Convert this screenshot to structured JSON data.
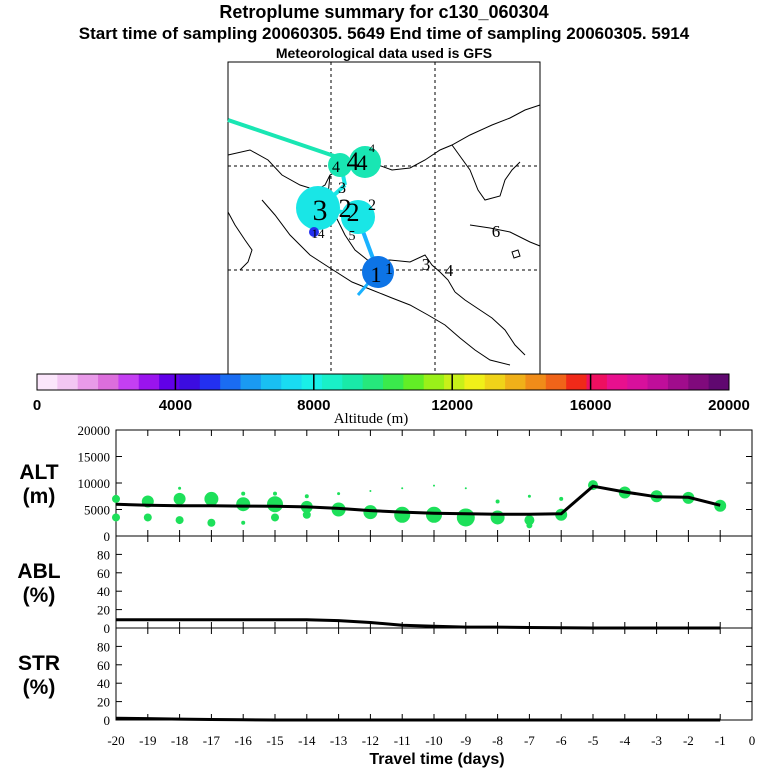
{
  "header": {
    "title": "Retroplume summary for c130_060304",
    "sampling": "Start time of sampling 20060305.  5649     End time of sampling 20060305.  5914",
    "met": "Meteorological data used is GFS"
  },
  "colors": {
    "trajectory_teal": "#19e6b3",
    "trajectory_cyan": "#19e6e6",
    "trajectory_sky": "#1ab2ff",
    "trajectory_blue": "#0d74e6",
    "green_dot": "#1de05a",
    "colorbar": [
      "#fbe6fb",
      "#f3c6f3",
      "#e99ae9",
      "#dc6edc",
      "#c43ff2",
      "#9a14ee",
      "#6100e8",
      "#3c0ce0",
      "#2330f0",
      "#1a6cf2",
      "#1a9af2",
      "#19bff2",
      "#19dbf2",
      "#19f0e8",
      "#19f0c8",
      "#19eaa8",
      "#26e87c",
      "#3aea4c",
      "#62ee26",
      "#9af019",
      "#c8f019",
      "#f0f019",
      "#f0d319",
      "#f0b019",
      "#f08c19",
      "#f06419",
      "#f02a19",
      "#ee0f60",
      "#e8108e",
      "#d8109c",
      "#c00e9a",
      "#a00c8c",
      "#800a7c",
      "#600870"
    ]
  },
  "map": {
    "labels": [
      {
        "text": "4",
        "value_m": 7500
      },
      {
        "text": "4",
        "value_m": 7500
      },
      {
        "text": "4",
        "value_m": 7500
      },
      {
        "text": "4",
        "value_m": 7500
      },
      {
        "text": "3",
        "value_m": 7000
      },
      {
        "text": "3",
        "value_m": 7000
      },
      {
        "text": "2",
        "value_m": 7000
      },
      {
        "text": "2",
        "value_m": 7000
      },
      {
        "text": "2",
        "value_m": 7000
      },
      {
        "text": "5",
        "value_m": 6500
      },
      {
        "text": "14",
        "value_m": 4500
      },
      {
        "text": "1",
        "value_m": 5000
      },
      {
        "text": "1",
        "value_m": 5000
      },
      {
        "text": "6",
        "value_m": 0
      },
      {
        "text": "3",
        "value_m": 0
      },
      {
        "text": "4",
        "value_m": 0
      }
    ]
  },
  "colorbar": {
    "ticks": [
      "0",
      "4000",
      "8000",
      "12000",
      "16000",
      "20000"
    ],
    "label": "Altitude (m)"
  },
  "chart_data": [
    {
      "type": "line",
      "panel": "ALT",
      "ylabel": "ALT\n(m)",
      "ylabel_lines": [
        "ALT",
        "(m)"
      ],
      "x": [
        -20,
        -19,
        -18,
        -17,
        -16,
        -15,
        -14,
        -13,
        -12,
        -11,
        -10,
        -9,
        -8,
        -7,
        -6,
        -5,
        -4,
        -3,
        -2,
        -1
      ],
      "values": [
        6000,
        5800,
        5700,
        5700,
        5650,
        5600,
        5500,
        5200,
        4800,
        4500,
        4300,
        4200,
        4100,
        4100,
        4200,
        9400,
        8300,
        7400,
        7300,
        5800
      ],
      "scatter": [
        {
          "x": -20,
          "y": 7000,
          "s": 4
        },
        {
          "x": -20,
          "y": 3500,
          "s": 4
        },
        {
          "x": -19,
          "y": 6500,
          "s": 6
        },
        {
          "x": -19,
          "y": 3500,
          "s": 4
        },
        {
          "x": -18,
          "y": 9000,
          "s": 1.5
        },
        {
          "x": -18,
          "y": 7000,
          "s": 6
        },
        {
          "x": -18,
          "y": 3000,
          "s": 4
        },
        {
          "x": -17,
          "y": 7000,
          "s": 7
        },
        {
          "x": -17,
          "y": 2500,
          "s": 4
        },
        {
          "x": -16,
          "y": 8000,
          "s": 2
        },
        {
          "x": -16,
          "y": 6000,
          "s": 7
        },
        {
          "x": -16,
          "y": 2500,
          "s": 2
        },
        {
          "x": -15,
          "y": 8000,
          "s": 2
        },
        {
          "x": -15,
          "y": 6000,
          "s": 8
        },
        {
          "x": -15,
          "y": 3500,
          "s": 4
        },
        {
          "x": -14,
          "y": 7500,
          "s": 2
        },
        {
          "x": -14,
          "y": 5500,
          "s": 6
        },
        {
          "x": -14,
          "y": 4000,
          "s": 4
        },
        {
          "x": -13,
          "y": 8000,
          "s": 1.5
        },
        {
          "x": -13,
          "y": 5000,
          "s": 7
        },
        {
          "x": -12,
          "y": 8500,
          "s": 1
        },
        {
          "x": -12,
          "y": 5000,
          "s": 2
        },
        {
          "x": -12,
          "y": 4500,
          "s": 7
        },
        {
          "x": -11,
          "y": 9000,
          "s": 1
        },
        {
          "x": -11,
          "y": 4000,
          "s": 8
        },
        {
          "x": -10,
          "y": 9500,
          "s": 1
        },
        {
          "x": -10,
          "y": 4000,
          "s": 8
        },
        {
          "x": -9,
          "y": 9000,
          "s": 1
        },
        {
          "x": -9,
          "y": 3500,
          "s": 9
        },
        {
          "x": -8,
          "y": 6500,
          "s": 2
        },
        {
          "x": -8,
          "y": 3500,
          "s": 7
        },
        {
          "x": -7,
          "y": 7500,
          "s": 1.5
        },
        {
          "x": -7,
          "y": 3000,
          "s": 5
        },
        {
          "x": -7,
          "y": 2000,
          "s": 3
        },
        {
          "x": -6,
          "y": 7000,
          "s": 2
        },
        {
          "x": -6,
          "y": 4000,
          "s": 6
        },
        {
          "x": -5,
          "y": 9600,
          "s": 5
        },
        {
          "x": -4,
          "y": 8200,
          "s": 6
        },
        {
          "x": -3,
          "y": 7500,
          "s": 6
        },
        {
          "x": -2,
          "y": 7200,
          "s": 6
        },
        {
          "x": -1,
          "y": 5700,
          "s": 6
        }
      ],
      "yticks": [
        "0",
        "5000",
        "10000",
        "15000",
        "20000"
      ],
      "ylim": [
        0,
        20000
      ]
    },
    {
      "type": "line",
      "panel": "ABL",
      "ylabel_lines": [
        "ABL",
        "(%)"
      ],
      "x": [
        -20,
        -19,
        -18,
        -17,
        -16,
        -15,
        -14,
        -13,
        -12,
        -11,
        -10,
        -9,
        -8,
        -7,
        -6,
        -5,
        -4,
        -3,
        -2,
        -1
      ],
      "values": [
        9,
        9,
        9,
        9,
        9,
        9,
        9,
        8,
        6,
        3,
        2,
        1,
        1,
        0.5,
        0.3,
        0,
        0,
        0,
        0,
        0
      ],
      "yticks": [
        "0",
        "20",
        "40",
        "60",
        "80"
      ],
      "ylim": [
        0,
        100
      ]
    },
    {
      "type": "line",
      "panel": "STR",
      "ylabel_lines": [
        "STR",
        "(%)"
      ],
      "x": [
        -20,
        -19,
        -18,
        -17,
        -16,
        -15,
        -14,
        -13,
        -12,
        -11,
        -10,
        -9,
        -8,
        -7,
        -6,
        -5,
        -4,
        -3,
        -2,
        -1
      ],
      "values": [
        2,
        1.5,
        1,
        0.5,
        0.2,
        0,
        0,
        0,
        0,
        0,
        0,
        0,
        0,
        0,
        0,
        0,
        0,
        0,
        0,
        0
      ],
      "yticks": [
        "0",
        "20",
        "40",
        "60",
        "80"
      ],
      "ylim": [
        0,
        100
      ]
    }
  ],
  "xaxis": {
    "ticks": [
      "-20",
      "-19",
      "-18",
      "-17",
      "-16",
      "-15",
      "-14",
      "-13",
      "-12",
      "-11",
      "-10",
      "-9",
      "-8",
      "-7",
      "-6",
      "-5",
      "-4",
      "-3",
      "-2",
      "-1",
      "0"
    ],
    "label": "Travel time (days)"
  }
}
